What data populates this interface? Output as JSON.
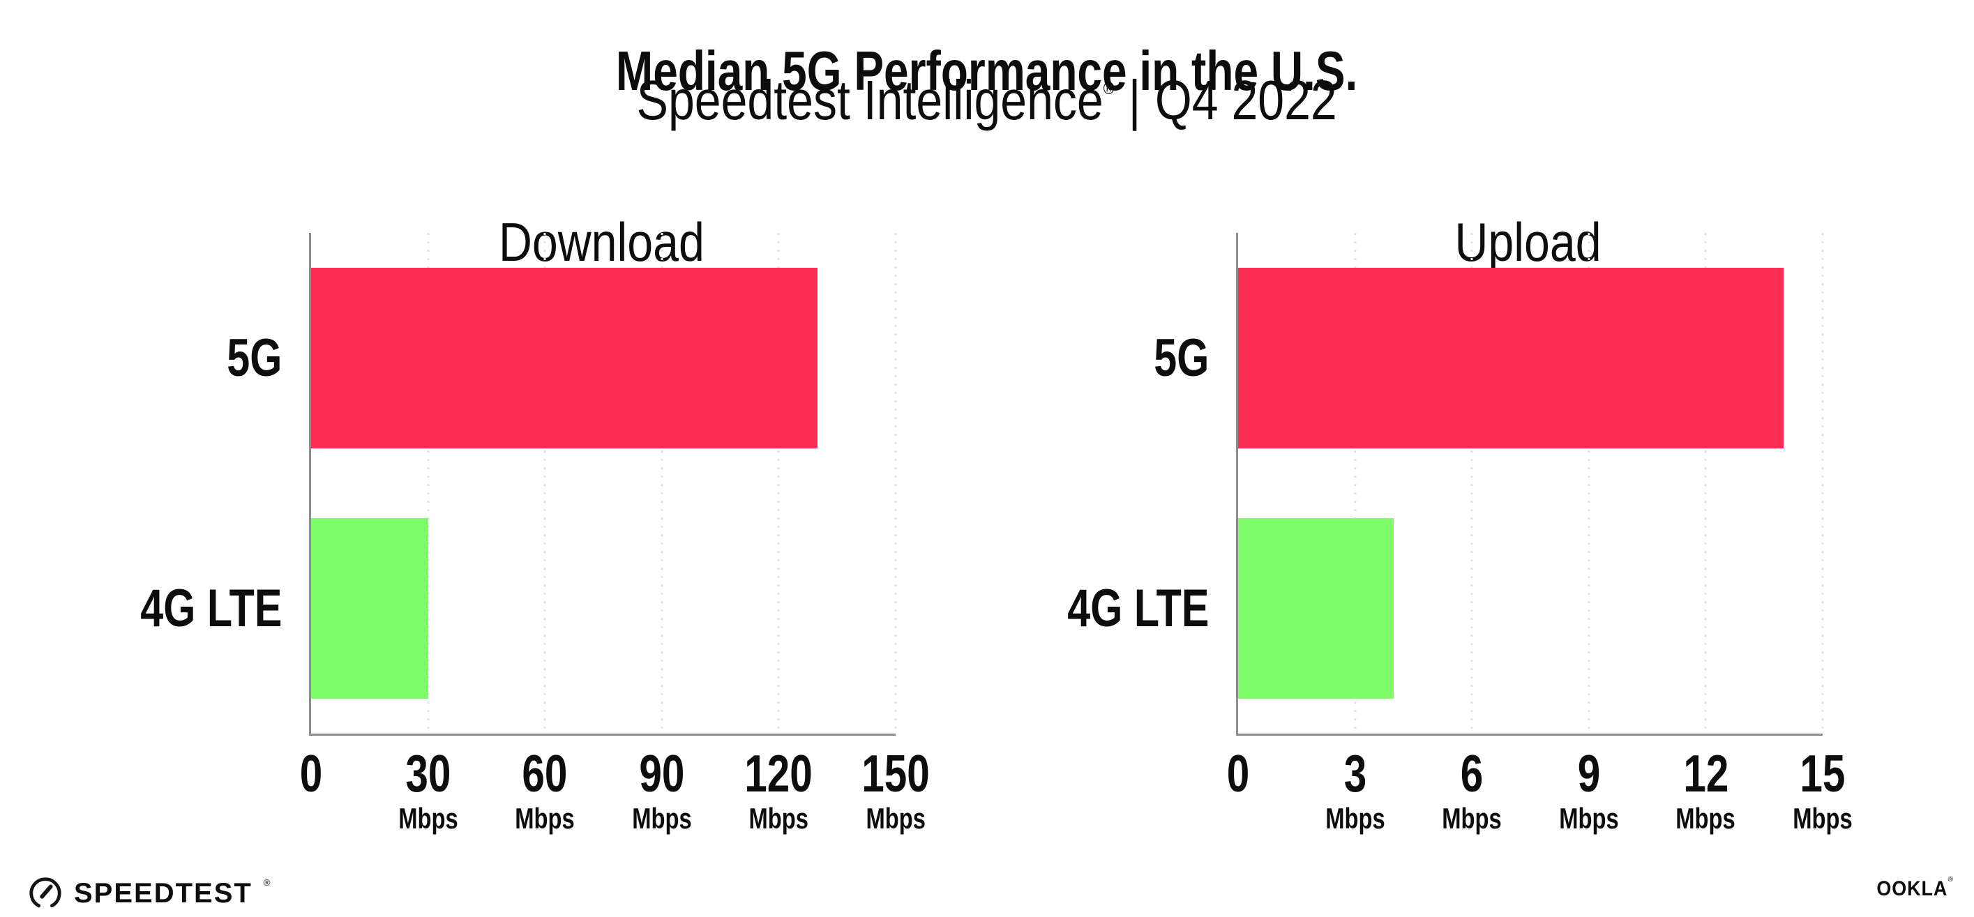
{
  "header": {
    "title": "Median 5G Performance in the U.S.",
    "subtitle_brand": "Speedtest Intelligence",
    "subtitle_reg": "®",
    "subtitle_separator": "|",
    "subtitle_period": "Q4 2022"
  },
  "colors": {
    "bar_5g": "#FC2D55",
    "bar_4g_lte": "#80FB69",
    "axis": "#8c8c8c",
    "gridline": "#dfe0ea",
    "text": "#0d0d0d"
  },
  "chart_data": [
    {
      "type": "bar",
      "orientation": "horizontal",
      "title": "Download",
      "categories": [
        "5G",
        "4G LTE"
      ],
      "values": [
        130,
        30
      ],
      "value_unit": "Mbps",
      "xlim": [
        0,
        150
      ],
      "xticks": [
        0,
        30,
        60,
        90,
        120,
        150
      ],
      "xtick_unit": "Mbps",
      "grid": "vertical-dotted",
      "legend": "none",
      "bar_colors": [
        "#FC2D55",
        "#80FB69"
      ]
    },
    {
      "type": "bar",
      "orientation": "horizontal",
      "title": "Upload",
      "categories": [
        "5G",
        "4G LTE"
      ],
      "values": [
        14,
        4
      ],
      "value_unit": "Mbps",
      "xlim": [
        0,
        15
      ],
      "xticks": [
        0,
        3,
        6,
        9,
        12,
        15
      ],
      "xtick_unit": "Mbps",
      "grid": "vertical-dotted",
      "legend": "none",
      "bar_colors": [
        "#FC2D55",
        "#80FB69"
      ]
    }
  ],
  "footer": {
    "speedtest_label": "SPEEDTEST",
    "speedtest_reg": "®",
    "ookla_label": "OOKLA",
    "ookla_reg": "®"
  }
}
